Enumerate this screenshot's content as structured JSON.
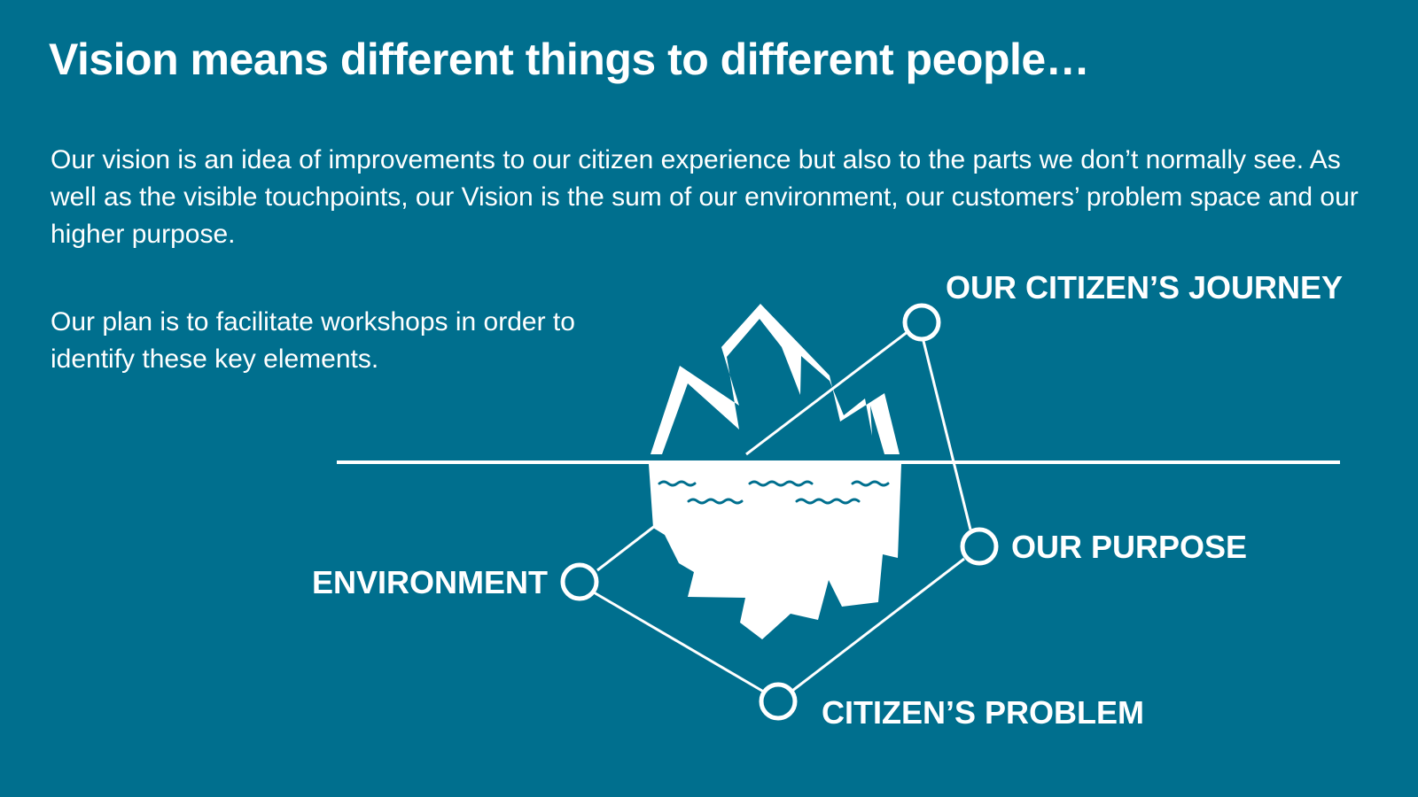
{
  "theme": {
    "background": "#006f8e",
    "foreground": "#ffffff"
  },
  "slide": {
    "title": "Vision means different things to different people…",
    "paragraphs": [
      "Our vision is an idea of improvements to our citizen experience but also to the parts we don’t normally see. As well as the visible touchpoints, our Vision is the sum of our environment, our customers’ problem space and our higher purpose.",
      "Our plan is to facilitate workshops in order to identify these key elements."
    ]
  },
  "diagram": {
    "illustration_icon": "iceberg-icon",
    "node_icon": "circle-node-icon",
    "labels": {
      "citizens_journey": "OUR CITIZEN’S JOURNEY",
      "our_purpose": "OUR PURPOSE",
      "environment": "ENVIRONMENT",
      "citizens_problem": "CITIZEN’S PROBLEM"
    }
  }
}
